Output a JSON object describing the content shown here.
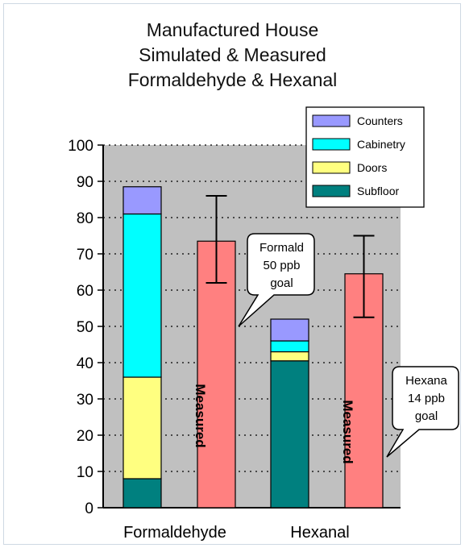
{
  "chart_data": {
    "type": "bar",
    "title_lines": [
      "Manufactured House",
      "Simulated & Measured",
      "Formaldehyde & Hexanal"
    ],
    "categories": [
      "Formaldehyde",
      "Hexanal"
    ],
    "ylim": [
      0,
      100
    ],
    "yticks": [
      0,
      10,
      20,
      30,
      40,
      50,
      60,
      70,
      80,
      90,
      100
    ],
    "grid": "horizontal dotted",
    "legend_position": "top-right",
    "stacked_simulated": [
      {
        "name": "Subfloor",
        "color": "#00807f",
        "values": [
          8,
          40.5
        ]
      },
      {
        "name": "Doors",
        "color": "#ffff80",
        "values": [
          28,
          2.5
        ]
      },
      {
        "name": "Cabinetry",
        "color": "#00ffff",
        "values": [
          45,
          3
        ]
      },
      {
        "name": "Counters",
        "color": "#9999ff",
        "values": [
          7.5,
          6
        ]
      }
    ],
    "legend_order": [
      "Counters",
      "Cabinetry",
      "Doors",
      "Subfloor"
    ],
    "measured": {
      "label": "Measured",
      "color": "#ff8080",
      "values": [
        73.5,
        64.5
      ],
      "error_low": [
        62,
        52.5
      ],
      "error_high": [
        86,
        75
      ]
    },
    "annotations": [
      {
        "lines": [
          "Formald",
          "50 ppb",
          "goal"
        ]
      },
      {
        "lines": [
          "Hexana",
          "14 ppb",
          "goal"
        ]
      }
    ]
  }
}
